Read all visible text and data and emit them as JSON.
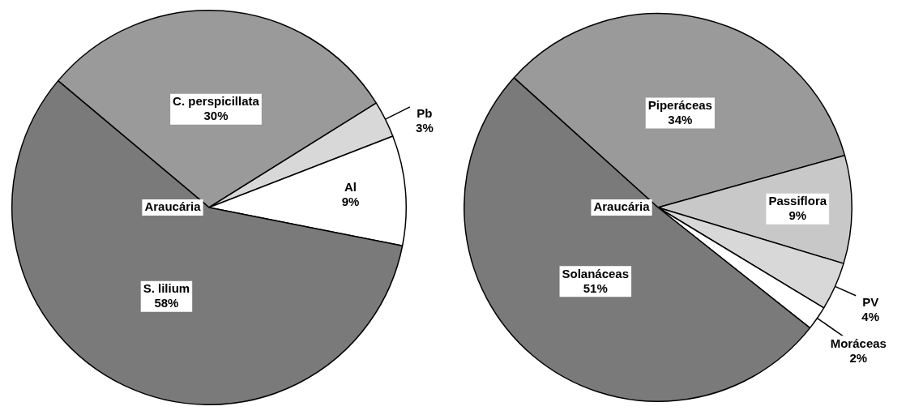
{
  "chart_data": [
    {
      "type": "pie",
      "title": "Araucária",
      "categories": [
        "C. perspicillata",
        "Pb",
        "Al",
        "S. lilium"
      ],
      "values": [
        30,
        3,
        9,
        58
      ],
      "value_labels": [
        "30%",
        "3%",
        "9%",
        "58%"
      ],
      "colors": [
        "#9a9a9a",
        "#d8d8d8",
        "#ffffff",
        "#7a7a7a"
      ],
      "legend": false
    },
    {
      "type": "pie",
      "title": "Araucária",
      "categories": [
        "Piperáceas",
        "Passiflora",
        "PV",
        "Moráceas",
        "Solanáceas"
      ],
      "values": [
        34,
        9,
        4,
        2,
        51
      ],
      "value_labels": [
        "34%",
        "9%",
        "4%",
        "2%",
        "51%"
      ],
      "colors": [
        "#9a9a9a",
        "#c8c8c8",
        "#d8d8d8",
        "#ffffff",
        "#7a7a7a"
      ],
      "legend": false
    }
  ]
}
